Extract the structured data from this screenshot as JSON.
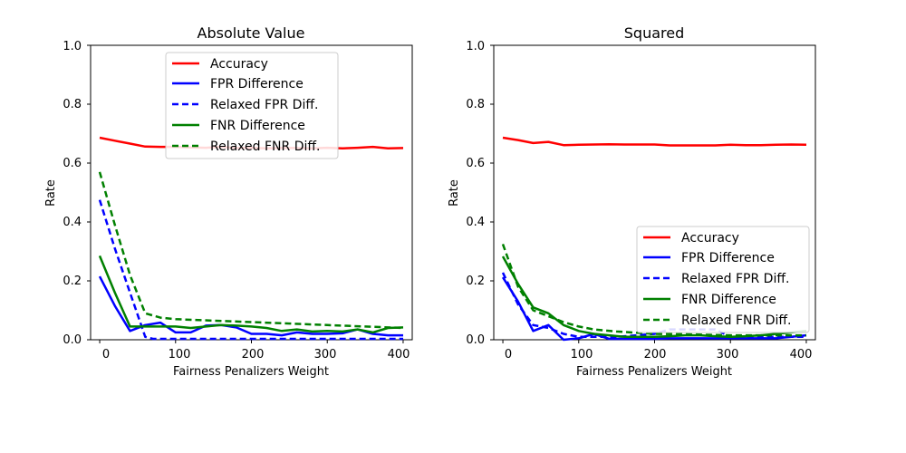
{
  "chart_data": [
    {
      "type": "line",
      "title": "Absolute Value",
      "xlabel": "Fairness Penalizers Weight",
      "ylabel": "Rate",
      "xlim": [
        -12,
        412
      ],
      "ylim": [
        0.0,
        1.0
      ],
      "xticks": [
        "0",
        "100",
        "200",
        "300",
        "400"
      ],
      "yticks": [
        "0.0",
        "0.2",
        "0.4",
        "0.6",
        "0.8",
        "1.0"
      ],
      "grid": false,
      "legend_position": "top-center",
      "series": [
        {
          "name": "Accuracy",
          "color": "#ff0000",
          "dash": "solid",
          "x": [
            0,
            20,
            40,
            60,
            80,
            100,
            120,
            140,
            160,
            180,
            200,
            220,
            240,
            260,
            280,
            300,
            320,
            340,
            360,
            380,
            400
          ],
          "y": [
            0.686,
            0.676,
            0.666,
            0.656,
            0.655,
            0.655,
            0.653,
            0.652,
            0.655,
            0.651,
            0.652,
            0.65,
            0.651,
            0.651,
            0.65,
            0.652,
            0.65,
            0.652,
            0.655,
            0.65,
            0.651
          ]
        },
        {
          "name": "FPR Difference",
          "color": "#0000ff",
          "dash": "solid",
          "x": [
            0,
            20,
            40,
            60,
            80,
            100,
            120,
            140,
            160,
            180,
            200,
            220,
            240,
            260,
            280,
            300,
            320,
            340,
            360,
            380,
            400
          ],
          "y": [
            0.215,
            0.115,
            0.03,
            0.05,
            0.058,
            0.025,
            0.025,
            0.048,
            0.05,
            0.042,
            0.02,
            0.02,
            0.015,
            0.025,
            0.02,
            0.02,
            0.022,
            0.035,
            0.02,
            0.015,
            0.015
          ]
        },
        {
          "name": "Relaxed FPR Diff.",
          "color": "#0000ff",
          "dash": "dashed",
          "x": [
            0,
            20,
            40,
            60,
            70,
            80,
            100,
            150,
            200,
            250,
            300,
            350,
            400
          ],
          "y": [
            0.475,
            0.31,
            0.16,
            0.01,
            0.003,
            0.003,
            0.003,
            0.003,
            0.003,
            0.003,
            0.003,
            0.003,
            0.003
          ]
        },
        {
          "name": "FNR Difference",
          "color": "#008000",
          "dash": "solid",
          "x": [
            0,
            20,
            40,
            60,
            80,
            100,
            120,
            140,
            160,
            180,
            200,
            220,
            240,
            260,
            280,
            300,
            320,
            340,
            360,
            380,
            400
          ],
          "y": [
            0.285,
            0.16,
            0.045,
            0.045,
            0.045,
            0.045,
            0.04,
            0.045,
            0.05,
            0.048,
            0.045,
            0.04,
            0.03,
            0.035,
            0.028,
            0.03,
            0.028,
            0.035,
            0.025,
            0.04,
            0.042
          ]
        },
        {
          "name": "Relaxed FNR Diff.",
          "color": "#008000",
          "dash": "dashed",
          "x": [
            0,
            20,
            40,
            60,
            80,
            100,
            150,
            200,
            250,
            300,
            350,
            400
          ],
          "y": [
            0.57,
            0.39,
            0.22,
            0.09,
            0.075,
            0.07,
            0.065,
            0.06,
            0.055,
            0.05,
            0.045,
            0.04
          ]
        }
      ]
    },
    {
      "type": "line",
      "title": "Squared",
      "xlabel": "Fairness Penalizers Weight",
      "ylabel": "Rate",
      "xlim": [
        -12,
        412
      ],
      "ylim": [
        0.0,
        1.0
      ],
      "xticks": [
        "0",
        "100",
        "200",
        "300",
        "400"
      ],
      "yticks": [
        "0.0",
        "0.2",
        "0.4",
        "0.6",
        "0.8",
        "1.0"
      ],
      "grid": false,
      "legend_position": "lower-right",
      "series": [
        {
          "name": "Accuracy",
          "color": "#ff0000",
          "dash": "solid",
          "x": [
            0,
            20,
            40,
            60,
            80,
            100,
            120,
            140,
            160,
            180,
            200,
            220,
            240,
            260,
            280,
            300,
            320,
            340,
            360,
            380,
            400
          ],
          "y": [
            0.686,
            0.678,
            0.668,
            0.672,
            0.661,
            0.662,
            0.663,
            0.664,
            0.663,
            0.663,
            0.663,
            0.66,
            0.66,
            0.66,
            0.66,
            0.662,
            0.661,
            0.661,
            0.662,
            0.663,
            0.662
          ]
        },
        {
          "name": "FPR Difference",
          "color": "#0000ff",
          "dash": "solid",
          "x": [
            0,
            20,
            40,
            60,
            80,
            100,
            120,
            140,
            160,
            180,
            200,
            220,
            240,
            260,
            280,
            300,
            320,
            340,
            360,
            380,
            400
          ],
          "y": [
            0.212,
            0.13,
            0.03,
            0.05,
            0.0,
            0.005,
            0.02,
            0.003,
            0.003,
            0.003,
            0.003,
            0.005,
            0.005,
            0.005,
            0.005,
            0.005,
            0.005,
            0.005,
            0.005,
            0.01,
            0.015
          ]
        },
        {
          "name": "Relaxed FPR Diff.",
          "color": "#0000ff",
          "dash": "dashed",
          "x": [
            0,
            20,
            40,
            60,
            80,
            100,
            150,
            200,
            220,
            250,
            280,
            300,
            350,
            400
          ],
          "y": [
            0.228,
            0.12,
            0.05,
            0.04,
            0.02,
            0.01,
            0.01,
            0.02,
            0.035,
            0.035,
            0.035,
            0.01,
            0.01,
            0.01
          ]
        },
        {
          "name": "FNR Difference",
          "color": "#008000",
          "dash": "solid",
          "x": [
            0,
            20,
            40,
            60,
            80,
            100,
            120,
            140,
            160,
            180,
            200,
            220,
            240,
            260,
            280,
            300,
            320,
            340,
            360,
            380,
            400
          ],
          "y": [
            0.283,
            0.19,
            0.11,
            0.09,
            0.05,
            0.03,
            0.02,
            0.015,
            0.01,
            0.01,
            0.01,
            0.012,
            0.015,
            0.015,
            0.012,
            0.01,
            0.012,
            0.015,
            0.02,
            0.025,
            0.03
          ]
        },
        {
          "name": "Relaxed FNR Diff.",
          "color": "#008000",
          "dash": "dashed",
          "x": [
            0,
            20,
            40,
            60,
            80,
            100,
            120,
            150,
            200,
            250,
            300,
            350,
            400
          ],
          "y": [
            0.325,
            0.18,
            0.1,
            0.08,
            0.06,
            0.045,
            0.035,
            0.028,
            0.02,
            0.018,
            0.015,
            0.015,
            0.015
          ]
        }
      ]
    }
  ]
}
